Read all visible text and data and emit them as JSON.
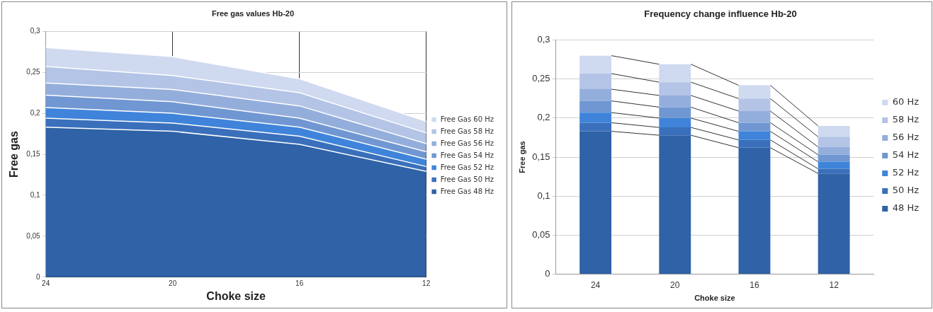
{
  "chart_data": [
    {
      "type": "area",
      "stacked": true,
      "title": "Free gas values Hb-20",
      "xlabel": "Choke size",
      "ylabel": "Free gas",
      "categories": [
        "24",
        "20",
        "16",
        "12"
      ],
      "series": [
        {
          "name": "Free Gas 48 Hz",
          "color": "#2f62a6",
          "values": [
            0.183,
            0.178,
            0.162,
            0.129
          ]
        },
        {
          "name": "Free Gas 50 Hz",
          "color": "#3a70bb",
          "values": [
            0.011,
            0.01,
            0.01,
            0.006
          ]
        },
        {
          "name": "Free Gas 52 Hz",
          "color": "#3f84da",
          "values": [
            0.013,
            0.012,
            0.011,
            0.009
          ]
        },
        {
          "name": "Free Gas 54 Hz",
          "color": "#7097d2",
          "values": [
            0.015,
            0.014,
            0.011,
            0.009
          ]
        },
        {
          "name": "Free Gas 56 Hz",
          "color": "#94aedc",
          "values": [
            0.015,
            0.015,
            0.015,
            0.01
          ]
        },
        {
          "name": "Free Gas 58 Hz",
          "color": "#b3c4e6",
          "values": [
            0.02,
            0.017,
            0.016,
            0.013
          ]
        },
        {
          "name": "Free Gas 60 Hz",
          "color": "#cfdaf0",
          "values": [
            0.023,
            0.023,
            0.017,
            0.014
          ]
        }
      ],
      "ylim": [
        0,
        0.3
      ],
      "yticks": [
        {
          "value": 0,
          "label": "0"
        },
        {
          "value": 0.05,
          "label": "0,05"
        },
        {
          "value": 0.1,
          "label": "0,1"
        },
        {
          "value": 0.15,
          "label": "0,15"
        },
        {
          "value": 0.2,
          "label": "0,2"
        },
        {
          "value": 0.25,
          "label": "0,25"
        },
        {
          "value": 0.3,
          "label": "0,3"
        }
      ],
      "grid": true,
      "legend": "right"
    },
    {
      "type": "bar",
      "stacked": true,
      "title": "Frequency change influence Hb-20",
      "xlabel": "Choke size",
      "ylabel": "Free gas",
      "categories": [
        "24",
        "20",
        "16",
        "12"
      ],
      "series": [
        {
          "name": "48 Hz",
          "color": "#2f62a6",
          "values": [
            0.183,
            0.178,
            0.162,
            0.129
          ]
        },
        {
          "name": "50 Hz",
          "color": "#3a70bb",
          "values": [
            0.011,
            0.01,
            0.01,
            0.006
          ]
        },
        {
          "name": "52 Hz",
          "color": "#3f84da",
          "values": [
            0.013,
            0.012,
            0.011,
            0.009
          ]
        },
        {
          "name": "54 Hz",
          "color": "#7097d2",
          "values": [
            0.015,
            0.014,
            0.011,
            0.009
          ]
        },
        {
          "name": "56 Hz",
          "color": "#94aedc",
          "values": [
            0.015,
            0.015,
            0.015,
            0.01
          ]
        },
        {
          "name": "58 Hz",
          "color": "#b3c4e6",
          "values": [
            0.02,
            0.017,
            0.016,
            0.013
          ]
        },
        {
          "name": "60 Hz",
          "color": "#cfdaf0",
          "values": [
            0.023,
            0.023,
            0.017,
            0.014
          ]
        }
      ],
      "ylim": [
        0,
        0.3
      ],
      "yticks": [
        {
          "value": 0,
          "label": "0"
        },
        {
          "value": 0.05,
          "label": "0,05"
        },
        {
          "value": 0.1,
          "label": "0,1"
        },
        {
          "value": 0.15,
          "label": "0,15"
        },
        {
          "value": 0.2,
          "label": "0,2"
        },
        {
          "value": 0.25,
          "label": "0,25"
        },
        {
          "value": 0.3,
          "label": "0,3"
        }
      ],
      "grid": "y",
      "legend": "right"
    }
  ]
}
